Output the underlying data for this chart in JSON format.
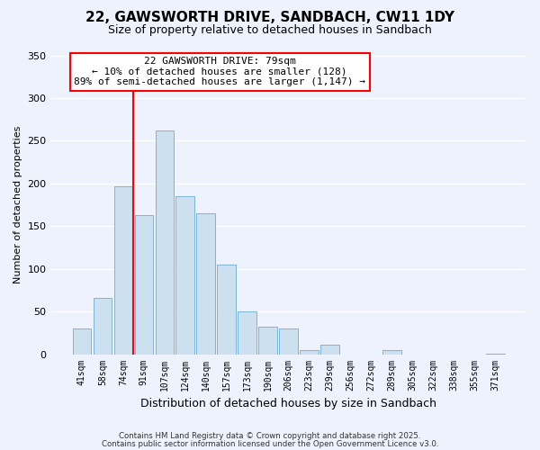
{
  "title": "22, GAWSWORTH DRIVE, SANDBACH, CW11 1DY",
  "subtitle": "Size of property relative to detached houses in Sandbach",
  "xlabel": "Distribution of detached houses by size in Sandbach",
  "ylabel": "Number of detached properties",
  "bar_labels": [
    "41sqm",
    "58sqm",
    "74sqm",
    "91sqm",
    "107sqm",
    "124sqm",
    "140sqm",
    "157sqm",
    "173sqm",
    "190sqm",
    "206sqm",
    "223sqm",
    "239sqm",
    "256sqm",
    "272sqm",
    "289sqm",
    "305sqm",
    "322sqm",
    "338sqm",
    "355sqm",
    "371sqm"
  ],
  "bar_values": [
    30,
    66,
    197,
    163,
    262,
    185,
    165,
    105,
    50,
    32,
    30,
    5,
    11,
    0,
    0,
    5,
    0,
    0,
    0,
    0,
    1
  ],
  "bar_color": "#cce0f0",
  "bar_edge_color": "#7ab5d8",
  "vline_x_index": 2,
  "vline_color": "red",
  "annotation_title": "22 GAWSWORTH DRIVE: 79sqm",
  "annotation_line1": "← 10% of detached houses are smaller (128)",
  "annotation_line2": "89% of semi-detached houses are larger (1,147) →",
  "annotation_box_color": "white",
  "annotation_box_edge": "red",
  "ylim": [
    0,
    350
  ],
  "yticks": [
    0,
    50,
    100,
    150,
    200,
    250,
    300,
    350
  ],
  "footer1": "Contains HM Land Registry data © Crown copyright and database right 2025.",
  "footer2": "Contains public sector information licensed under the Open Government Licence v3.0.",
  "background_color": "#edf2fc",
  "grid_color": "white"
}
